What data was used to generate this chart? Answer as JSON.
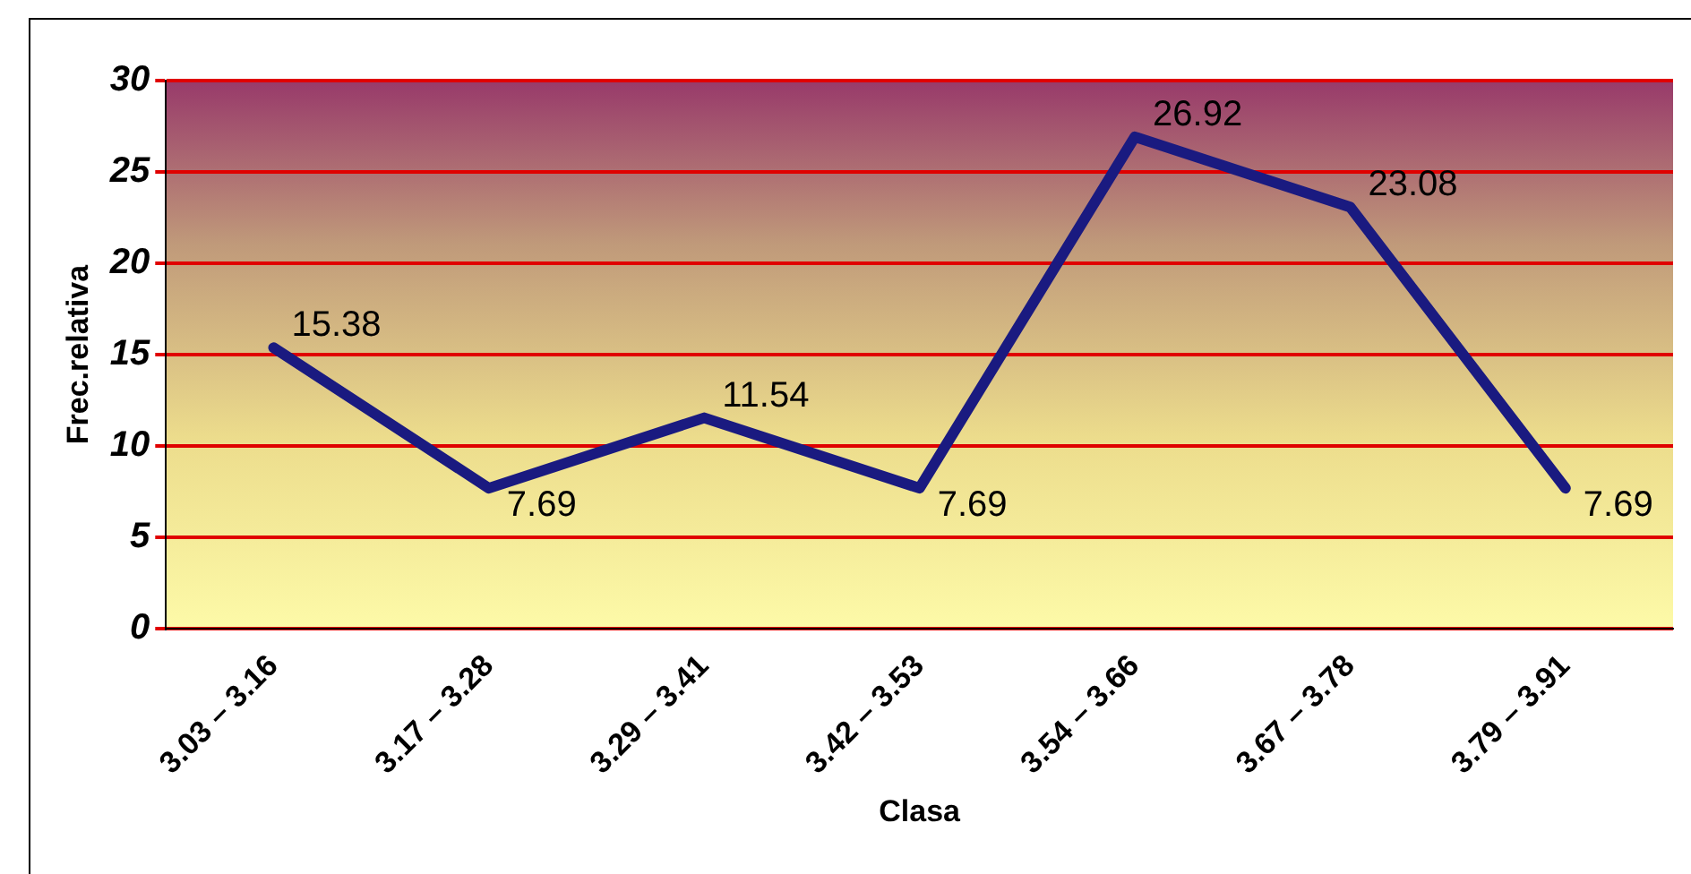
{
  "chart_data": {
    "type": "line",
    "xlabel": "Clasa",
    "ylabel": "Frec.relativa",
    "categories": [
      "3.03 – 3.16",
      "3.17 – 3.28",
      "3.29 – 3.41",
      "3.42 – 3.53",
      "3.54 – 3.66",
      "3.67 – 3.78",
      "3.79 – 3.91"
    ],
    "series": [
      {
        "color": "#1a1a80",
        "values": [
          15.38,
          7.69,
          11.54,
          7.69,
          26.92,
          23.08,
          7.69
        ]
      }
    ],
    "ylim": [
      0,
      30
    ],
    "yticks": [
      0,
      5,
      10,
      15,
      20,
      25,
      30
    ],
    "grid": "y",
    "data_labels": true,
    "marker": "none",
    "line_style": "solid",
    "legend": false
  }
}
